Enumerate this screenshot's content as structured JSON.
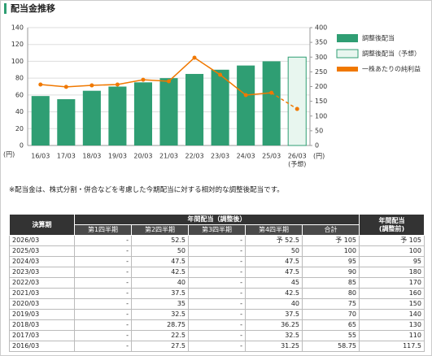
{
  "header": {
    "title": "配当金推移"
  },
  "chart_data": {
    "type": "bar",
    "categories": [
      "16/03",
      "17/03",
      "18/03",
      "19/03",
      "20/03",
      "21/03",
      "22/03",
      "23/03",
      "24/03",
      "25/03",
      "26/03"
    ],
    "forecast_label": "(予想)",
    "y_unit": "(円)",
    "y2_unit": "(円)",
    "series": [
      {
        "name": "調整後配当",
        "color": "#2f9e73",
        "values": [
          58.75,
          55,
          65,
          70,
          75,
          80,
          85,
          90,
          95,
          100,
          null
        ]
      },
      {
        "name": "調整後配当（予想）",
        "color": "#e8f6ef",
        "values": [
          null,
          null,
          null,
          null,
          null,
          null,
          null,
          null,
          null,
          null,
          105
        ]
      },
      {
        "name": "一株あたりの純利益",
        "color": "#f07800",
        "type": "line",
        "axis": "y2",
        "values": [
          207,
          199,
          204,
          207,
          223,
          218,
          298,
          240,
          171,
          179,
          124
        ]
      }
    ],
    "ylim": [
      0,
      140
    ],
    "yticks": [
      0,
      20,
      40,
      60,
      80,
      100,
      120,
      140
    ],
    "y2lim": [
      0,
      400
    ],
    "y2ticks": [
      0,
      50,
      100,
      150,
      200,
      250,
      300,
      350,
      400
    ],
    "grid": true
  },
  "note": "※配当金は、株式分割・併合などを考慮した今期配当に対する相対的な調整後配当です。",
  "table": {
    "header": {
      "period": "決算期",
      "adjusted": "年間配当（調整後）",
      "before": [
        "年間配当",
        "(調整前)"
      ],
      "columns": [
        "第1四半期",
        "第2四半期",
        "第3四半期",
        "第4四半期",
        "合計"
      ]
    },
    "rows": [
      [
        "2026/03",
        "-",
        "52.5",
        "-",
        "予 52.5",
        "予 105",
        "予 105"
      ],
      [
        "2025/03",
        "-",
        "50",
        "-",
        "50",
        "100",
        "100"
      ],
      [
        "2024/03",
        "-",
        "47.5",
        "-",
        "47.5",
        "95",
        "95"
      ],
      [
        "2023/03",
        "-",
        "42.5",
        "-",
        "47.5",
        "90",
        "180"
      ],
      [
        "2022/03",
        "-",
        "40",
        "-",
        "45",
        "85",
        "170"
      ],
      [
        "2021/03",
        "-",
        "37.5",
        "-",
        "42.5",
        "80",
        "160"
      ],
      [
        "2020/03",
        "-",
        "35",
        "-",
        "40",
        "75",
        "150"
      ],
      [
        "2019/03",
        "-",
        "32.5",
        "-",
        "37.5",
        "70",
        "140"
      ],
      [
        "2018/03",
        "-",
        "28.75",
        "-",
        "36.25",
        "65",
        "130"
      ],
      [
        "2017/03",
        "-",
        "22.5",
        "-",
        "32.5",
        "55",
        "110"
      ],
      [
        "2016/03",
        "-",
        "27.5",
        "-",
        "31.25",
        "58.75",
        "117.5"
      ]
    ]
  }
}
